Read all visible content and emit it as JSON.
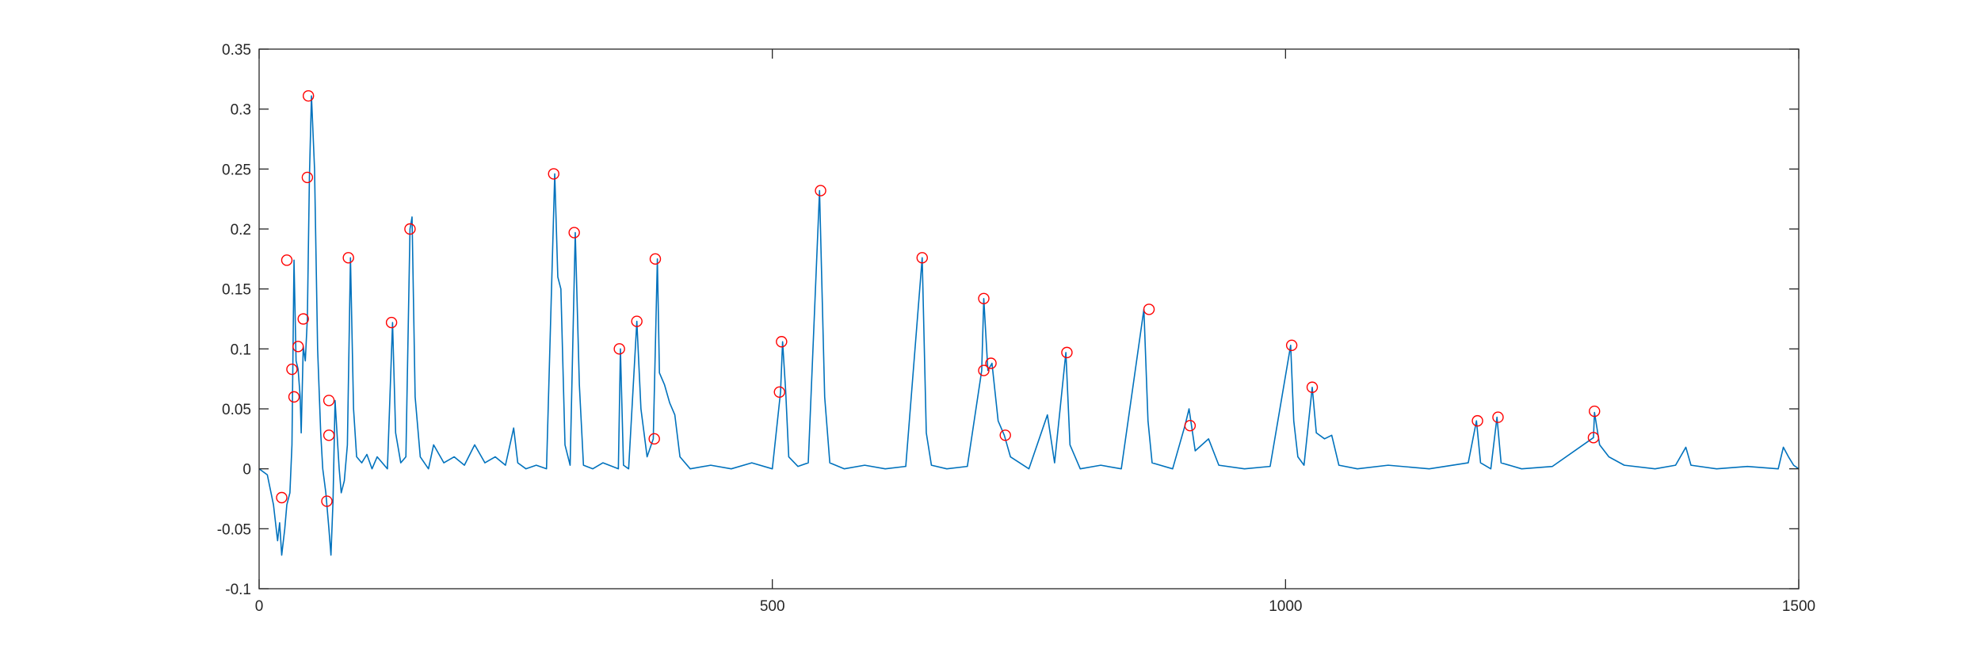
{
  "chart_data": {
    "type": "line",
    "title": "",
    "xlabel": "",
    "ylabel": "",
    "xlim": [
      0,
      1500
    ],
    "ylim": [
      -0.1,
      0.35
    ],
    "x_ticks": [
      0,
      500,
      1000,
      1500
    ],
    "y_ticks": [
      -0.1,
      -0.05,
      0,
      0.05,
      0.1,
      0.15,
      0.2,
      0.25,
      0.3,
      0.35
    ],
    "x_tick_labels": [
      "0",
      "500",
      "1000",
      "1500"
    ],
    "y_tick_labels": [
      "-0.1",
      "-0.05",
      "0",
      "0.05",
      "0.1",
      "0.15",
      "0.2",
      "0.25",
      "0.3",
      "0.35"
    ],
    "grid": false,
    "legend": "none",
    "colors": {
      "line": "#0072BD",
      "markers": "#FF0000",
      "axes": "#262626"
    },
    "series": [
      {
        "kind": "line",
        "points": [
          [
            0,
            0
          ],
          [
            8,
            -0.005
          ],
          [
            14,
            -0.03
          ],
          [
            18,
            -0.06
          ],
          [
            20,
            -0.045
          ],
          [
            22,
            -0.072
          ],
          [
            25,
            -0.05
          ],
          [
            27,
            -0.03
          ],
          [
            30,
            -0.02
          ],
          [
            32,
            0.02
          ],
          [
            34,
            0.174
          ],
          [
            36,
            0.09
          ],
          [
            38,
            0.083
          ],
          [
            40,
            0.06
          ],
          [
            41,
            0.03
          ],
          [
            43,
            0.102
          ],
          [
            45,
            0.09
          ],
          [
            47,
            0.125
          ],
          [
            49,
            0.243
          ],
          [
            51,
            0.311
          ],
          [
            54,
            0.25
          ],
          [
            57,
            0.1
          ],
          [
            60,
            0.03
          ],
          [
            62,
            0.0
          ],
          [
            65,
            -0.02
          ],
          [
            68,
            -0.05
          ],
          [
            70,
            -0.072
          ],
          [
            72,
            -0.027
          ],
          [
            74,
            0.057
          ],
          [
            76,
            0.028
          ],
          [
            78,
            0.0
          ],
          [
            80,
            -0.02
          ],
          [
            83,
            -0.01
          ],
          [
            86,
            0.02
          ],
          [
            89,
            0.176
          ],
          [
            92,
            0.05
          ],
          [
            95,
            0.01
          ],
          [
            100,
            0.005
          ],
          [
            105,
            0.012
          ],
          [
            110,
            0.0
          ],
          [
            115,
            0.01
          ],
          [
            120,
            0.005
          ],
          [
            125,
            0.0
          ],
          [
            130,
            0.122
          ],
          [
            133,
            0.03
          ],
          [
            138,
            0.005
          ],
          [
            143,
            0.01
          ],
          [
            147,
            0.2
          ],
          [
            149,
            0.21
          ],
          [
            152,
            0.06
          ],
          [
            157,
            0.01
          ],
          [
            165,
            0.0
          ],
          [
            170,
            0.02
          ],
          [
            180,
            0.005
          ],
          [
            190,
            0.01
          ],
          [
            200,
            0.003
          ],
          [
            210,
            0.02
          ],
          [
            220,
            0.005
          ],
          [
            230,
            0.01
          ],
          [
            240,
            0.003
          ],
          [
            248,
            0.034
          ],
          [
            252,
            0.005
          ],
          [
            260,
            0.0
          ],
          [
            270,
            0.003
          ],
          [
            280,
            0.0
          ],
          [
            288,
            0.246
          ],
          [
            291,
            0.16
          ],
          [
            294,
            0.15
          ],
          [
            298,
            0.02
          ],
          [
            303,
            0.003
          ],
          [
            308,
            0.197
          ],
          [
            312,
            0.07
          ],
          [
            316,
            0.003
          ],
          [
            325,
            0.0
          ],
          [
            335,
            0.005
          ],
          [
            350,
            0.0
          ],
          [
            352,
            0.1
          ],
          [
            355,
            0.003
          ],
          [
            360,
            0.0
          ],
          [
            368,
            0.123
          ],
          [
            372,
            0.05
          ],
          [
            378,
            0.01
          ],
          [
            384,
            0.025
          ],
          [
            388,
            0.175
          ],
          [
            390,
            0.08
          ],
          [
            395,
            0.07
          ],
          [
            400,
            0.055
          ],
          [
            405,
            0.045
          ],
          [
            410,
            0.01
          ],
          [
            420,
            0.0
          ],
          [
            440,
            0.003
          ],
          [
            460,
            0.0
          ],
          [
            480,
            0.005
          ],
          [
            500,
            0.0
          ],
          [
            508,
            0.064
          ],
          [
            510,
            0.106
          ],
          [
            513,
            0.065
          ],
          [
            516,
            0.01
          ],
          [
            525,
            0.002
          ],
          [
            535,
            0.005
          ],
          [
            546,
            0.232
          ],
          [
            551,
            0.06
          ],
          [
            556,
            0.005
          ],
          [
            570,
            0.0
          ],
          [
            590,
            0.003
          ],
          [
            610,
            0.0
          ],
          [
            630,
            0.002
          ],
          [
            646,
            0.176
          ],
          [
            650,
            0.03
          ],
          [
            655,
            0.003
          ],
          [
            670,
            0.0
          ],
          [
            690,
            0.002
          ],
          [
            704,
            0.082
          ],
          [
            706,
            0.142
          ],
          [
            710,
            0.082
          ],
          [
            714,
            0.088
          ],
          [
            720,
            0.04
          ],
          [
            726,
            0.028
          ],
          [
            732,
            0.01
          ],
          [
            750,
            0.0
          ],
          [
            768,
            0.045
          ],
          [
            775,
            0.005
          ],
          [
            786,
            0.097
          ],
          [
            790,
            0.02
          ],
          [
            800,
            0.0
          ],
          [
            820,
            0.003
          ],
          [
            840,
            0.0
          ],
          [
            862,
            0.133
          ],
          [
            866,
            0.04
          ],
          [
            870,
            0.005
          ],
          [
            890,
            0.0
          ],
          [
            902,
            0.036
          ],
          [
            906,
            0.05
          ],
          [
            912,
            0.015
          ],
          [
            925,
            0.025
          ],
          [
            935,
            0.003
          ],
          [
            960,
            0.0
          ],
          [
            985,
            0.002
          ],
          [
            1005,
            0.103
          ],
          [
            1008,
            0.04
          ],
          [
            1012,
            0.01
          ],
          [
            1018,
            0.003
          ],
          [
            1026,
            0.068
          ],
          [
            1030,
            0.03
          ],
          [
            1038,
            0.025
          ],
          [
            1045,
            0.028
          ],
          [
            1052,
            0.003
          ],
          [
            1070,
            0.0
          ],
          [
            1100,
            0.003
          ],
          [
            1140,
            0.0
          ],
          [
            1178,
            0.005
          ],
          [
            1186,
            0.04
          ],
          [
            1190,
            0.005
          ],
          [
            1200,
            0.0
          ],
          [
            1206,
            0.043
          ],
          [
            1210,
            0.005
          ],
          [
            1230,
            0.0
          ],
          [
            1260,
            0.002
          ],
          [
            1300,
            0.026
          ],
          [
            1301,
            0.047
          ],
          [
            1306,
            0.02
          ],
          [
            1315,
            0.01
          ],
          [
            1330,
            0.003
          ],
          [
            1360,
            0.0
          ],
          [
            1380,
            0.003
          ],
          [
            1390,
            0.018
          ],
          [
            1395,
            0.003
          ],
          [
            1420,
            0.0
          ],
          [
            1450,
            0.002
          ],
          [
            1480,
            0.0
          ],
          [
            1485,
            0.018
          ],
          [
            1490,
            0.01
          ],
          [
            1495,
            0.003
          ],
          [
            1500,
            0.0
          ]
        ]
      },
      {
        "kind": "markers",
        "marker": "circle",
        "points": [
          [
            22,
            -0.024
          ],
          [
            27,
            0.174
          ],
          [
            32,
            0.083
          ],
          [
            34,
            0.06
          ],
          [
            38,
            0.102
          ],
          [
            43,
            0.125
          ],
          [
            47,
            0.243
          ],
          [
            48,
            0.311
          ],
          [
            66,
            -0.027
          ],
          [
            68,
            0.057
          ],
          [
            68,
            0.028
          ],
          [
            87,
            0.176
          ],
          [
            129,
            0.122
          ],
          [
            147,
            0.2
          ],
          [
            287,
            0.246
          ],
          [
            307,
            0.197
          ],
          [
            351,
            0.1
          ],
          [
            368,
            0.123
          ],
          [
            386,
            0.175
          ],
          [
            385,
            0.025
          ],
          [
            509,
            0.106
          ],
          [
            507,
            0.064
          ],
          [
            547,
            0.232
          ],
          [
            646,
            0.176
          ],
          [
            706,
            0.142
          ],
          [
            706,
            0.082
          ],
          [
            713,
            0.088
          ],
          [
            727,
            0.028
          ],
          [
            787,
            0.097
          ],
          [
            867,
            0.133
          ],
          [
            907,
            0.036
          ],
          [
            1006,
            0.103
          ],
          [
            1026,
            0.068
          ],
          [
            1187,
            0.04
          ],
          [
            1207,
            0.043
          ],
          [
            1301,
            0.048
          ],
          [
            1300,
            0.026
          ]
        ]
      }
    ]
  }
}
